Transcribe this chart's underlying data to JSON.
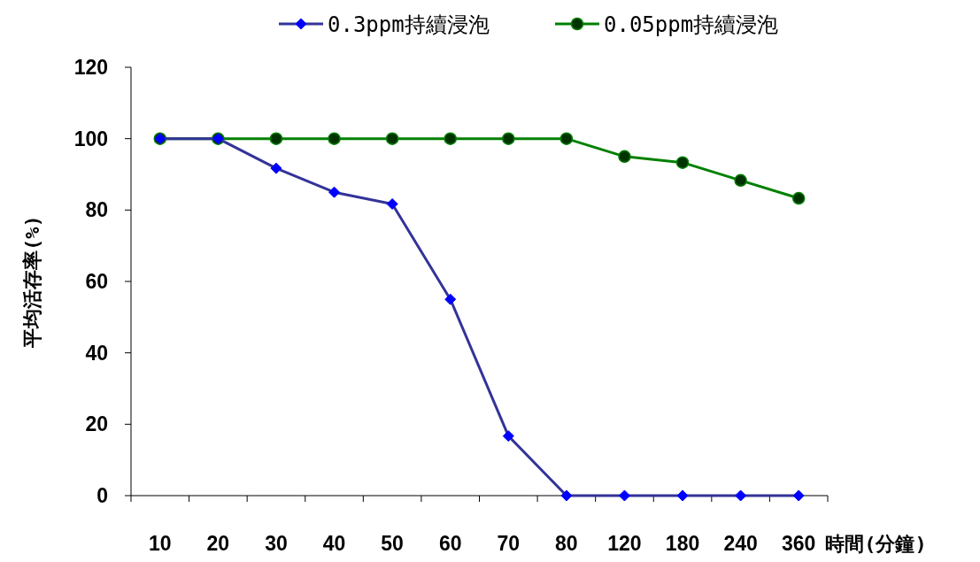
{
  "chart_data": {
    "type": "line",
    "xlabel": "時間(分鐘)",
    "ylabel": "平均活存率(%)",
    "categories": [
      "10",
      "20",
      "30",
      "40",
      "50",
      "60",
      "70",
      "80",
      "120",
      "180",
      "240",
      "360"
    ],
    "series": [
      {
        "name": "0.3ppm持續浸泡",
        "color": "#333399",
        "marker": "diamond",
        "values": [
          100,
          100,
          91.7,
          85,
          81.7,
          55,
          16.7,
          0,
          0,
          0,
          0,
          0
        ]
      },
      {
        "name": "0.05ppm持續浸泡",
        "color": "#008000",
        "marker": "circle",
        "values": [
          100,
          100,
          100,
          100,
          100,
          100,
          100,
          100,
          95,
          93.3,
          88.3,
          83.3
        ]
      }
    ],
    "ylim": [
      0,
      120
    ],
    "yticks": [
      0,
      20,
      40,
      60,
      80,
      100,
      120
    ],
    "grid": false,
    "legend": "top",
    "line_style": "solid"
  }
}
